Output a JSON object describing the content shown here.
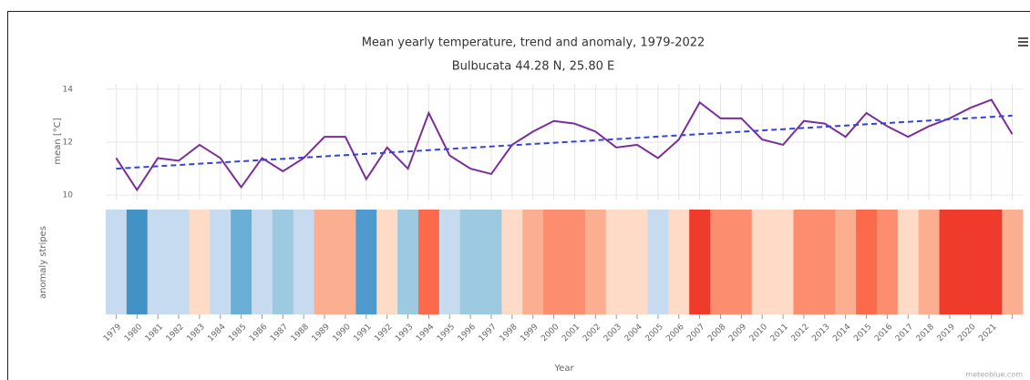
{
  "chart_data": {
    "type": "line",
    "title": "Mean yearly temperature, trend and anomaly, 1979-2022",
    "subtitle": "Bulbucata 44.28 N, 25.80 E",
    "ylabel": "mean [°C]",
    "stripes_label": "anomaly stripes",
    "xlabel": "Year",
    "credit": "meteoblue.com",
    "categories": [
      "1979",
      "1980",
      "1981",
      "1982",
      "1983",
      "1984",
      "1985",
      "1986",
      "1987",
      "1988",
      "1989",
      "1990",
      "1991",
      "1992",
      "1993",
      "1994",
      "1995",
      "1996",
      "1997",
      "1998",
      "1999",
      "2000",
      "2001",
      "2002",
      "2003",
      "2004",
      "2005",
      "2006",
      "2007",
      "2008",
      "2009",
      "2010",
      "2011",
      "2012",
      "2013",
      "2014",
      "2015",
      "2016",
      "2017",
      "2018",
      "2019",
      "2020",
      "2021",
      null
    ],
    "series": [
      {
        "name": "mean",
        "color": "#7b2d9b",
        "values": [
          11.4,
          10.2,
          11.4,
          11.3,
          11.9,
          11.4,
          10.3,
          11.4,
          10.9,
          11.4,
          12.2,
          12.2,
          10.6,
          11.8,
          11.0,
          13.1,
          11.5,
          11.0,
          10.8,
          11.9,
          12.4,
          12.8,
          12.7,
          12.4,
          11.8,
          11.9,
          11.4,
          12.1,
          13.5,
          12.9,
          12.9,
          12.1,
          11.9,
          12.8,
          12.7,
          12.2,
          13.1,
          12.6,
          12.2,
          12.6,
          12.9,
          13.3,
          13.6,
          12.3
        ]
      }
    ],
    "trend": {
      "name": "trend",
      "color": "#3344dd",
      "x": [
        1979,
        2022
      ],
      "values": [
        11.0,
        13.0
      ]
    },
    "stripe_colors": [
      "#c6dbef",
      "#4292c6",
      "#c6dbef",
      "#c6dbef",
      "#fddbc7",
      "#c6dbef",
      "#6baed6",
      "#c6dbef",
      "#9ecae1",
      "#c6dbef",
      "#fcae91",
      "#fcae91",
      "#4f9bcf",
      "#fddbc7",
      "#9ecae1",
      "#fb6a4a",
      "#c6dbef",
      "#9ecae1",
      "#9ecae1",
      "#fddbc7",
      "#fcae91",
      "#fc8d6e",
      "#fc8d6e",
      "#fcae91",
      "#fddbc7",
      "#fddbc7",
      "#c6dbef",
      "#fddbc7",
      "#ef3b2c",
      "#fc8d6e",
      "#fc8d6e",
      "#fddbc7",
      "#fddbc7",
      "#fc8d6e",
      "#fc8d6e",
      "#fcae91",
      "#fb6a4a",
      "#fc8d6e",
      "#fddbc7",
      "#fcae91",
      "#ef3b2c",
      "#ef3b2c",
      "#ef3b2c",
      "#fcae91"
    ],
    "xlim": [
      1978.5,
      2022.5
    ],
    "ylim": [
      9.8,
      14.2
    ],
    "yticks": [
      10,
      12,
      14
    ],
    "grid": true
  }
}
